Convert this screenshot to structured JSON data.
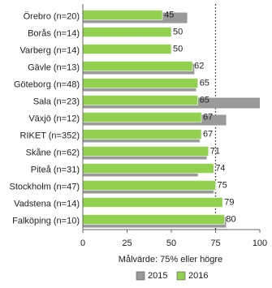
{
  "chart_data": {
    "type": "barh",
    "categories": [
      "Örebro (n=20)",
      "Borås (n=14)",
      "Varberg (n=14)",
      "Gävle (n=13)",
      "Göteborg (n=48)",
      "Sala (n=23)",
      "Växjö (n=12)",
      "RIKET (n=352)",
      "Skåne (n=62)",
      "Piteå (n=31)",
      "Stockholm (n=47)",
      "Vadstena (n=14)",
      "Falköping (n=10)"
    ],
    "series": [
      {
        "name": "2015",
        "color": "#9a9a9a",
        "values": [
          59,
          null,
          null,
          63,
          64,
          100,
          81,
          66,
          70,
          65,
          74,
          null,
          81
        ]
      },
      {
        "name": "2016",
        "color": "#92d050",
        "values": [
          45,
          50,
          50,
          62,
          65,
          65,
          67,
          67,
          71,
          74,
          75,
          79,
          80
        ]
      }
    ],
    "xlim": [
      0,
      100
    ],
    "xticks": [
      0,
      25,
      50,
      75,
      100
    ],
    "target": 75,
    "target_label": "Målvärde: 75% eller högre",
    "legend": "bottom"
  }
}
